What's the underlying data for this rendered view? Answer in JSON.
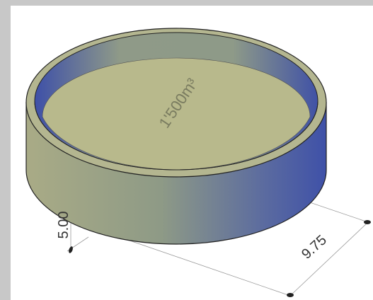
{
  "drawing": {
    "area_label": "1'500m³",
    "height_label": "5.00",
    "diameter_label": "9.75"
  }
}
